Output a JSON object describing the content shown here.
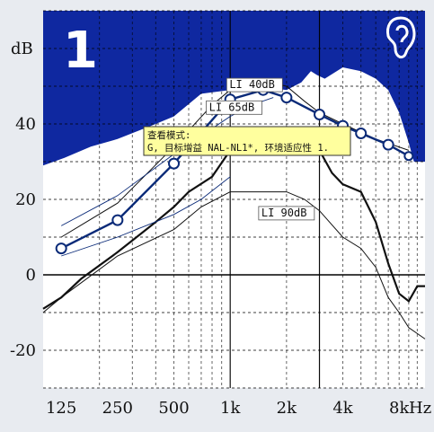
{
  "program_number": "1",
  "ear_icon": "ear-icon",
  "colors": {
    "background": "#e8ebf0",
    "max_output": "#0f28a0",
    "target_line": "#0a2a78",
    "marker_fill": "#ffffff",
    "tooltip_bg": "#ffff9e",
    "grid_minor": "#000000",
    "grid_major": "#000000"
  },
  "tooltip": {
    "line1": "查看模式:",
    "line2": "G, 目标增益 NAL-NL1*, 环境适应性 1."
  },
  "chart_data": {
    "type": "line",
    "ylabel": "dB",
    "xlabel": "Hz",
    "x_scale": "log",
    "xlim": [
      100,
      11000
    ],
    "ylim": [
      -30,
      70
    ],
    "x_ticks": [
      {
        "value": 125,
        "label": "125"
      },
      {
        "value": 250,
        "label": "250"
      },
      {
        "value": 500,
        "label": "500"
      },
      {
        "value": 1000,
        "label": "1k"
      },
      {
        "value": 2000,
        "label": "2k"
      },
      {
        "value": 4000,
        "label": "4k"
      },
      {
        "value": 8000,
        "label": "8k"
      }
    ],
    "y_ticks": [
      -20,
      0,
      20,
      40
    ],
    "grid": true,
    "max_output": {
      "x": [
        100,
        130,
        180,
        250,
        400,
        500,
        700,
        1000,
        1400,
        2000,
        2400,
        2700,
        2900,
        3200,
        4000,
        5000,
        6000,
        7000,
        8000,
        9000,
        9600,
        11000
      ],
      "values": [
        29,
        31,
        34,
        36,
        40,
        42,
        48,
        49,
        50,
        49,
        51,
        54,
        53,
        52,
        55,
        54,
        52,
        49,
        43,
        35,
        30,
        30
      ]
    },
    "target_gain": {
      "x": [
        125,
        250,
        500,
        1000,
        1500,
        2000,
        3000,
        4000,
        5000,
        7000,
        9000
      ],
      "values": [
        7,
        14.5,
        29.5,
        46.5,
        49,
        47,
        42.5,
        39.5,
        37.5,
        34.5,
        31.5
      ]
    },
    "series": [
      {
        "name": "LI 40dB",
        "x": [
          125,
          250,
          500,
          800,
          1000,
          1300,
          1600,
          2000,
          2500,
          3000,
          4000,
          6000,
          9000
        ],
        "values": [
          10,
          19,
          34,
          45,
          49,
          50,
          51,
          50,
          46,
          43,
          40,
          36,
          33
        ]
      },
      {
        "name": "LI 65dB",
        "x": [
          100,
          125,
          160,
          250,
          400,
          500,
          600,
          800,
          1000,
          1300,
          1700,
          2000,
          2500,
          2800,
          3000,
          3500,
          4000,
          5000,
          6000,
          7000,
          8000,
          9000,
          10000,
          11000
        ],
        "values": [
          -9,
          -6,
          -1,
          6,
          14,
          18,
          22,
          26,
          33,
          38,
          39,
          38,
          36,
          35,
          33,
          27,
          24,
          22,
          14,
          3,
          -5,
          -7,
          -3,
          -3
        ]
      },
      {
        "name": "LI 90dB",
        "x": [
          100,
          125,
          250,
          500,
          700,
          1000,
          1400,
          2000,
          2500,
          3000,
          4000,
          5000,
          6000,
          7000,
          8000,
          9000,
          11000
        ],
        "values": [
          -10,
          -6,
          5,
          12,
          18,
          22,
          22,
          22,
          20,
          17,
          10,
          7,
          2,
          -6,
          -10,
          -14,
          -17
        ]
      },
      {
        "name": "",
        "x": [
          125,
          250,
          500,
          1000,
          1300,
          1700
        ],
        "values": [
          13,
          21,
          32,
          42,
          45,
          47
        ]
      },
      {
        "name": "",
        "x": [
          125,
          250,
          500,
          700,
          1000
        ],
        "values": [
          5,
          10,
          16,
          20,
          26
        ]
      }
    ],
    "curve_labels": [
      {
        "text": "LI 40dB",
        "x": 1350,
        "y": 49.5
      },
      {
        "text": "LI 65dB",
        "x": 1050,
        "y": 43.5
      },
      {
        "text": "LI 90dB",
        "x": 2000,
        "y": 15.5
      }
    ]
  }
}
